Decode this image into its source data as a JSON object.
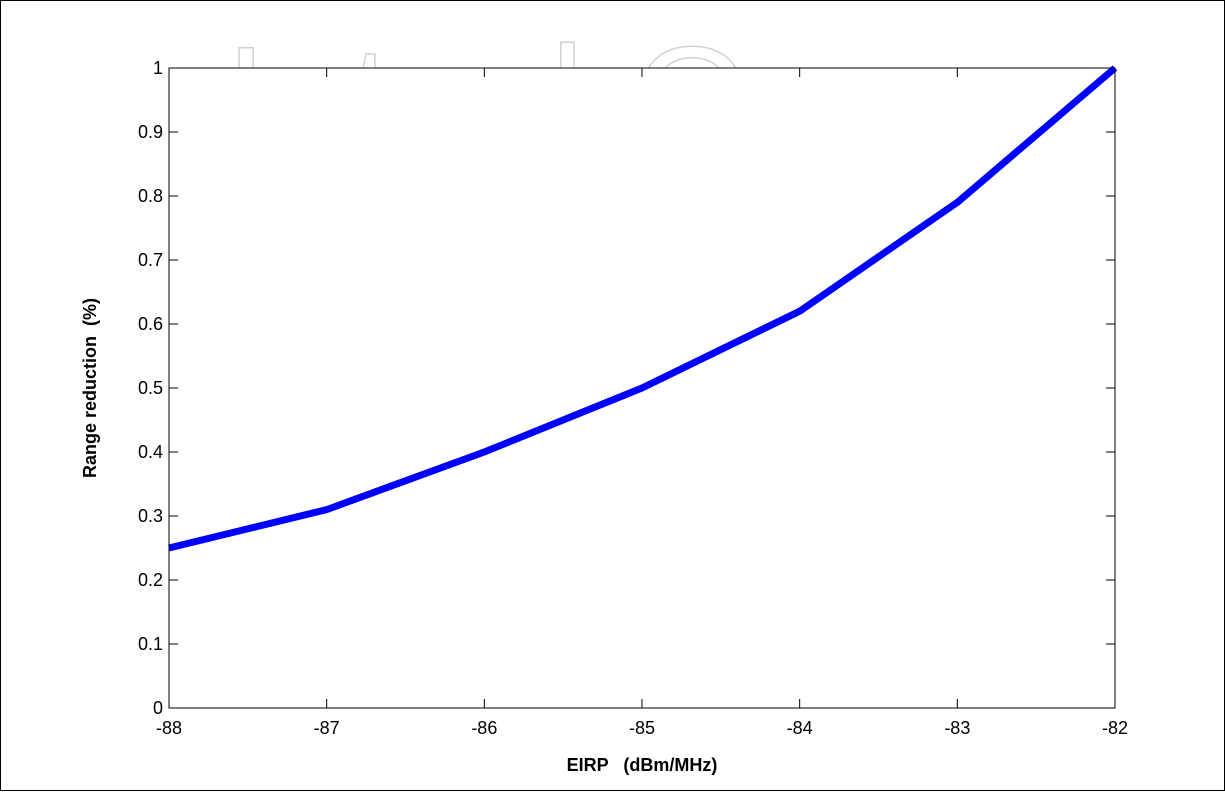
{
  "watermark": "IntechOpen",
  "chart_data": {
    "type": "line",
    "title": "",
    "xlabel": "EIRP   (dBm/MHz)",
    "ylabel": "Range reduction  (%)",
    "xlim": [
      -88,
      -82
    ],
    "ylim": [
      0,
      1
    ],
    "xticks": [
      -88,
      -87,
      -86,
      -85,
      -84,
      -83,
      -82
    ],
    "yticks": [
      0,
      0.1,
      0.2,
      0.3,
      0.4,
      0.5,
      0.6,
      0.7,
      0.8,
      0.9,
      1
    ],
    "xtick_labels": [
      "-88",
      "-87",
      "-86",
      "-85",
      "-84",
      "-83",
      "-82"
    ],
    "ytick_labels": [
      "0",
      "0.1",
      "0.2",
      "0.3",
      "0.4",
      "0.5",
      "0.6",
      "0.7",
      "0.8",
      "0.9",
      "1"
    ],
    "grid": false,
    "legend": "none",
    "series": [
      {
        "color": "#0000ff",
        "x": [
          -88,
          -87,
          -86,
          -85,
          -84,
          -83,
          -82
        ],
        "y": [
          0.25,
          0.31,
          0.4,
          0.5,
          0.62,
          0.79,
          1.0
        ]
      }
    ]
  }
}
